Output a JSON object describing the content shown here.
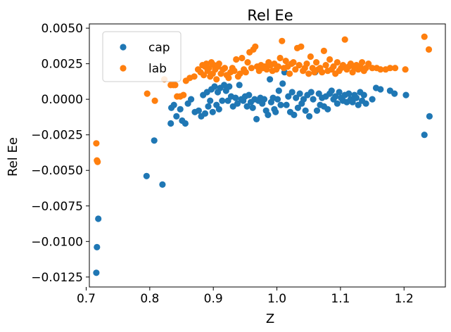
{
  "chart_data": {
    "type": "scatter",
    "title": "Rel Ee",
    "xlabel": "Z",
    "ylabel": "Rel Ee",
    "xlim": [
      0.705,
      1.265
    ],
    "ylim": [
      -0.0132,
      0.0053
    ],
    "xticks": [
      0.7,
      0.8,
      0.9,
      1.0,
      1.1,
      1.2
    ],
    "xtick_labels": [
      "0.7",
      "0.8",
      "0.9",
      "1.0",
      "1.1",
      "1.2"
    ],
    "yticks": [
      0.005,
      0.0025,
      0.0,
      -0.0025,
      -0.005,
      -0.0075,
      -0.01,
      -0.0125
    ],
    "ytick_labels": [
      "0.0050",
      "0.0025",
      "0.0000",
      "−0.0025",
      "−0.0050",
      "−0.0075",
      "−0.0100",
      "−0.0125"
    ],
    "grid": false,
    "legend_position": "top-left",
    "series": [
      {
        "name": "cap",
        "color": "#1f77b4",
        "points": [
          [
            0.716,
            -0.0122
          ],
          [
            0.717,
            -0.0104
          ],
          [
            0.719,
            -0.0084
          ],
          [
            0.795,
            -0.0054
          ],
          [
            0.807,
            -0.0029
          ],
          [
            0.82,
            -0.006
          ],
          [
            0.833,
            -0.0017
          ],
          [
            0.834,
            -0.0006
          ],
          [
            0.838,
            -0.0004
          ],
          [
            0.842,
            -0.0012
          ],
          [
            0.848,
            -0.0007
          ],
          [
            0.851,
            -0.0015
          ],
          [
            0.856,
            -0.0017
          ],
          [
            0.86,
            -0.0003
          ],
          [
            0.865,
            0.0
          ],
          [
            0.871,
            -0.0009
          ],
          [
            0.877,
            -0.0008
          ],
          [
            0.881,
            -0.0012
          ],
          [
            0.884,
            0.0003
          ],
          [
            0.887,
            -0.001
          ],
          [
            0.89,
            0.0005
          ],
          [
            0.892,
            -0.0005
          ],
          [
            0.895,
            -0.0001
          ],
          [
            0.897,
            0.0007
          ],
          [
            0.899,
            -0.0009
          ],
          [
            0.902,
            0.0009
          ],
          [
            0.905,
            -0.0004
          ],
          [
            0.907,
            0.0005
          ],
          [
            0.909,
            -0.0007
          ],
          [
            0.911,
            0.0008
          ],
          [
            0.914,
            -0.0001
          ],
          [
            0.917,
            0.001
          ],
          [
            0.92,
            0.0006
          ],
          [
            0.923,
            -0.0001
          ],
          [
            0.925,
            0.0009
          ],
          [
            0.928,
            0.0002
          ],
          [
            0.931,
            -0.0005
          ],
          [
            0.935,
            0.0001
          ],
          [
            0.938,
            -0.0003
          ],
          [
            0.941,
            0.001
          ],
          [
            0.944,
            0.0
          ],
          [
            0.947,
            -0.0001
          ],
          [
            0.95,
            0.0002
          ],
          [
            0.953,
            -0.0005
          ],
          [
            0.956,
            0.0003
          ],
          [
            0.959,
            -0.0002
          ],
          [
            0.962,
            -0.0006
          ],
          [
            0.965,
            0.0
          ],
          [
            0.968,
            -0.0014
          ],
          [
            0.971,
            -0.0001
          ],
          [
            0.974,
            0.0001
          ],
          [
            0.977,
            -0.0003
          ],
          [
            0.98,
            0.0
          ],
          [
            0.983,
            -0.0008
          ],
          [
            0.986,
            -0.0011
          ],
          [
            0.989,
            0.0014
          ],
          [
            0.991,
            -0.0002
          ],
          [
            0.994,
            0.0001
          ],
          [
            0.996,
            -0.0007
          ],
          [
            0.998,
            -0.0009
          ],
          [
            1.001,
            0.0
          ],
          [
            1.003,
            0.0006
          ],
          [
            1.006,
            -0.0004
          ],
          [
            1.009,
            0.0011
          ],
          [
            1.012,
            0.0019
          ],
          [
            1.015,
            -0.0004
          ],
          [
            1.018,
            0.0002
          ],
          [
            1.021,
            -0.0009
          ],
          [
            1.024,
            0.0005
          ],
          [
            1.027,
            -0.0011
          ],
          [
            1.03,
            0.0001
          ],
          [
            1.033,
            -0.0006
          ],
          [
            1.036,
            0.0004
          ],
          [
            1.039,
            -0.0003
          ],
          [
            1.042,
            0.0
          ],
          [
            1.045,
            -0.0008
          ],
          [
            1.048,
            0.0003
          ],
          [
            1.051,
            -0.0012
          ],
          [
            1.054,
            0.0005
          ],
          [
            1.057,
            0.0
          ],
          [
            1.06,
            0.0019
          ],
          [
            1.063,
            -0.0008
          ],
          [
            1.066,
            0.0004
          ],
          [
            1.068,
            -0.0004
          ],
          [
            1.071,
            0.0001
          ],
          [
            1.074,
            -0.0005
          ],
          [
            1.077,
            0.0002
          ],
          [
            1.08,
            -0.0007
          ],
          [
            1.083,
            0.0004
          ],
          [
            1.086,
            0.0006
          ],
          [
            1.089,
            0.0
          ],
          [
            1.092,
            0.0002
          ],
          [
            1.095,
            -0.0003
          ],
          [
            1.098,
            0.0005
          ],
          [
            1.101,
            0.0001
          ],
          [
            1.104,
            -0.0001
          ],
          [
            1.107,
            0.0003
          ],
          [
            1.11,
            -0.0002
          ],
          [
            1.113,
            0.0004
          ],
          [
            1.116,
            0.0
          ],
          [
            1.119,
            -0.0002
          ],
          [
            1.122,
            0.0003
          ],
          [
            1.125,
            0.0001
          ],
          [
            1.128,
            -0.0004
          ],
          [
            1.131,
            0.0005
          ],
          [
            1.134,
            -0.0001
          ],
          [
            1.137,
            0.0003
          ],
          [
            1.14,
            -0.0003
          ],
          [
            1.15,
            0.0
          ],
          [
            1.156,
            0.0008
          ],
          [
            1.163,
            0.0007
          ],
          [
            1.178,
            0.0006
          ],
          [
            1.185,
            0.0004
          ],
          [
            1.203,
            0.0003
          ],
          [
            1.232,
            -0.0025
          ],
          [
            1.24,
            -0.0012
          ]
        ]
      },
      {
        "name": "lab",
        "color": "#ff7f0e",
        "points": [
          [
            0.716,
            -0.0031
          ],
          [
            0.717,
            -0.0043
          ],
          [
            0.718,
            -0.0044
          ],
          [
            0.796,
            0.0004
          ],
          [
            0.808,
            -0.0001
          ],
          [
            0.823,
            0.0014
          ],
          [
            0.833,
            0.001
          ],
          [
            0.837,
            0.001
          ],
          [
            0.84,
            0.001
          ],
          [
            0.843,
            0.0002
          ],
          [
            0.848,
            0.0002
          ],
          [
            0.853,
            0.0003
          ],
          [
            0.857,
            0.0013
          ],
          [
            0.863,
            0.0015
          ],
          [
            0.87,
            0.0016
          ],
          [
            0.876,
            0.0021
          ],
          [
            0.88,
            0.0019
          ],
          [
            0.883,
            0.0024
          ],
          [
            0.885,
            0.0017
          ],
          [
            0.887,
            0.0023
          ],
          [
            0.889,
            0.0025
          ],
          [
            0.891,
            0.002
          ],
          [
            0.893,
            0.0022
          ],
          [
            0.895,
            0.0016
          ],
          [
            0.897,
            0.0026
          ],
          [
            0.899,
            0.0018
          ],
          [
            0.901,
            0.0024
          ],
          [
            0.903,
            0.0021
          ],
          [
            0.905,
            0.0014
          ],
          [
            0.907,
            0.0023
          ],
          [
            0.909,
            0.0025
          ],
          [
            0.912,
            0.0018
          ],
          [
            0.915,
            0.0021
          ],
          [
            0.918,
            0.0022
          ],
          [
            0.921,
            0.0017
          ],
          [
            0.924,
            0.0015
          ],
          [
            0.927,
            0.0019
          ],
          [
            0.93,
            0.0022
          ],
          [
            0.933,
            0.002
          ],
          [
            0.936,
            0.0028
          ],
          [
            0.939,
            0.0016
          ],
          [
            0.942,
            0.0018
          ],
          [
            0.945,
            0.0029
          ],
          [
            0.948,
            0.0021
          ],
          [
            0.951,
            0.0019
          ],
          [
            0.954,
            0.0026
          ],
          [
            0.957,
            0.0033
          ],
          [
            0.96,
            0.0022
          ],
          [
            0.963,
            0.0035
          ],
          [
            0.966,
            0.0037
          ],
          [
            0.969,
            0.0023
          ],
          [
            0.972,
            0.002
          ],
          [
            0.975,
            0.0024
          ],
          [
            0.978,
            0.0022
          ],
          [
            0.981,
            0.0023
          ],
          [
            0.984,
            0.0021
          ],
          [
            0.987,
            0.0026
          ],
          [
            0.99,
            0.0024
          ],
          [
            0.993,
            0.002
          ],
          [
            0.996,
            0.0025
          ],
          [
            0.999,
            0.0021
          ],
          [
            1.002,
            0.0023
          ],
          [
            1.005,
            0.0029
          ],
          [
            1.008,
            0.0041
          ],
          [
            1.011,
            0.0022
          ],
          [
            1.014,
            0.0027
          ],
          [
            1.017,
            0.0023
          ],
          [
            1.02,
            0.0018
          ],
          [
            1.023,
            0.0025
          ],
          [
            1.026,
            0.0026
          ],
          [
            1.029,
            0.0021
          ],
          [
            1.032,
            0.0036
          ],
          [
            1.035,
            0.0024
          ],
          [
            1.038,
            0.0037
          ],
          [
            1.041,
            0.002
          ],
          [
            1.044,
            0.0022
          ],
          [
            1.047,
            0.0025
          ],
          [
            1.05,
            0.0018
          ],
          [
            1.053,
            0.003
          ],
          [
            1.056,
            0.0022
          ],
          [
            1.059,
            0.0019
          ],
          [
            1.062,
            0.0026
          ],
          [
            1.065,
            0.0021
          ],
          [
            1.068,
            0.0022
          ],
          [
            1.071,
            0.0019
          ],
          [
            1.074,
            0.0034
          ],
          [
            1.077,
            0.0024
          ],
          [
            1.08,
            0.002
          ],
          [
            1.083,
            0.0028
          ],
          [
            1.086,
            0.0021
          ],
          [
            1.089,
            0.0023
          ],
          [
            1.092,
            0.0018
          ],
          [
            1.095,
            0.0026
          ],
          [
            1.098,
            0.002
          ],
          [
            1.101,
            0.0022
          ],
          [
            1.104,
            0.0024
          ],
          [
            1.107,
            0.0042
          ],
          [
            1.11,
            0.0021
          ],
          [
            1.113,
            0.0023
          ],
          [
            1.116,
            0.0025
          ],
          [
            1.119,
            0.0019
          ],
          [
            1.122,
            0.0022
          ],
          [
            1.125,
            0.0024
          ],
          [
            1.128,
            0.0021
          ],
          [
            1.131,
            0.0023
          ],
          [
            1.134,
            0.0026
          ],
          [
            1.137,
            0.002
          ],
          [
            1.14,
            0.0022
          ],
          [
            1.144,
            0.0025
          ],
          [
            1.15,
            0.0022
          ],
          [
            1.157,
            0.0022
          ],
          [
            1.163,
            0.0021
          ],
          [
            1.171,
            0.0021
          ],
          [
            1.178,
            0.0022
          ],
          [
            1.186,
            0.0022
          ],
          [
            1.202,
            0.0021
          ],
          [
            1.232,
            0.0044
          ],
          [
            1.239,
            0.0035
          ]
        ]
      }
    ]
  }
}
